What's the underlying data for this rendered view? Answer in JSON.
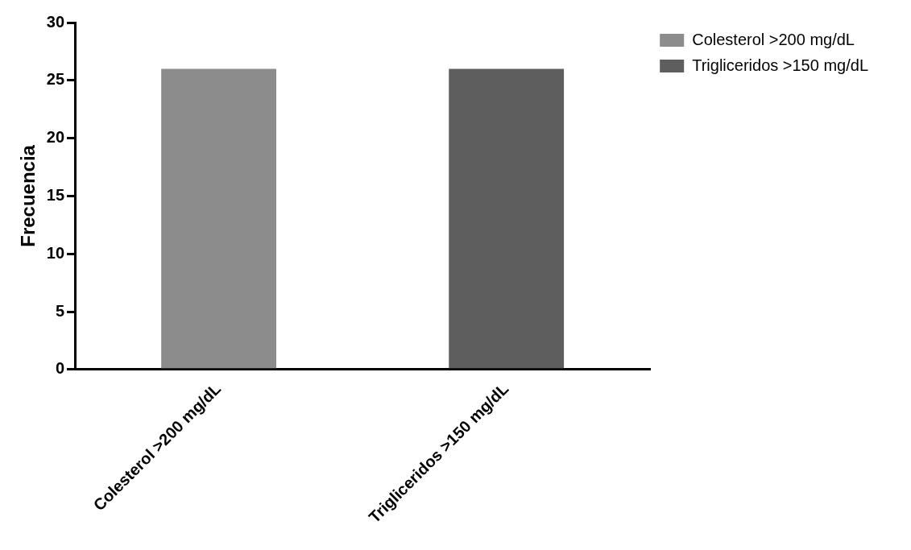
{
  "chart_data": {
    "type": "bar",
    "ylabel": "Frecuencia",
    "categories": [
      "Colesterol >200 mg/dL",
      "Trigliceridos >150 mg/dL"
    ],
    "series": [
      {
        "name": "Colesterol >200 mg/dL",
        "color": "#8c8c8c",
        "values": [
          26,
          null
        ]
      },
      {
        "name": "Trigliceridos >150 mg/dL",
        "color": "#5e5e5e",
        "values": [
          null,
          26
        ]
      }
    ],
    "ylim": [
      0,
      30
    ],
    "yticks": [
      0,
      5,
      10,
      15,
      20,
      25,
      30
    ],
    "grid": false,
    "legend": "top right"
  }
}
